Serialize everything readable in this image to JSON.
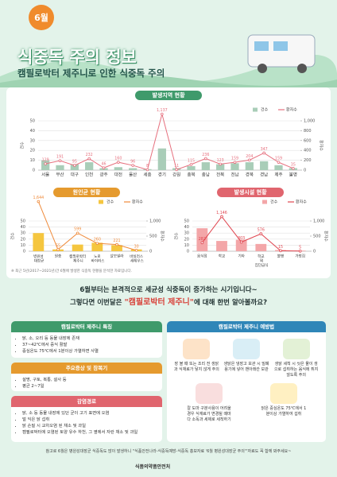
{
  "header": {
    "badge": "6월",
    "title": "식중독 주의 정보",
    "subtitle": "캠필로박터 제주니로 인한 식중독 주의"
  },
  "chart_data": [
    {
      "type": "combo",
      "title": "발생지역 현황",
      "categories": [
        "서울",
        "부산",
        "대구",
        "인천",
        "광주",
        "대전",
        "울산",
        "세종",
        "경기",
        "강원",
        "충북",
        "충남",
        "전북",
        "전남",
        "경북",
        "경남",
        "제주",
        "불명"
      ],
      "series": [
        {
          "name": "건수",
          "type": "bar",
          "color": "#a9cdb8",
          "values": [
            10,
            5,
            6,
            8,
            2,
            3,
            2,
            1,
            22,
            2,
            4,
            8,
            6,
            7,
            8,
            9,
            5,
            2
          ]
        },
        {
          "name": "환자수",
          "type": "line",
          "axis": "y2",
          "color": "#e6707e",
          "values": [
            129,
            191,
            95,
            232,
            46,
            160,
            96,
            8,
            1137,
            11,
            115,
            236,
            123,
            159,
            204,
            347,
            159,
            35
          ],
          "value_labels": [
            "129",
            "191",
            "95",
            "232",
            "46",
            "160",
            "96",
            "8",
            "1,137",
            "11",
            "115",
            "236",
            "123",
            "159",
            "204",
            "347",
            "159",
            "35"
          ]
        }
      ],
      "ylabel": "건수",
      "y2label": "환자수",
      "ylim": [
        0,
        50
      ],
      "yticks": [
        0,
        10,
        20,
        30,
        40,
        50
      ],
      "y2lim": [
        0,
        1000
      ],
      "y2ticks": [
        0,
        200,
        400,
        600,
        800,
        {
          "value": 1000,
          "label": "1,000"
        }
      ],
      "grid": true
    },
    {
      "type": "combo",
      "title": "원인균 현황",
      "categories": [
        "병원성 대장균",
        "원충",
        "캠필로박터 제주니",
        "노로 바이러스",
        "살모넬라",
        "바실러스 세레우스"
      ],
      "series": [
        {
          "name": "건수",
          "type": "bar",
          "color": "#f5c63f",
          "values": [
            30,
            3,
            11,
            14,
            10,
            3
          ]
        },
        {
          "name": "환자수",
          "type": "line",
          "axis": "y2",
          "color": "#ef8a3a",
          "values": [
            1644,
            55,
            599,
            260,
            221,
            30
          ],
          "value_labels": [
            "1,644",
            "55",
            "599",
            "260",
            "221",
            "30"
          ]
        }
      ],
      "ylabel": "건수",
      "y2label": "환자수",
      "ylim": [
        0,
        50
      ],
      "yticks": [
        0,
        10,
        20,
        30,
        40,
        50
      ],
      "y2lim": [
        0,
        1000
      ],
      "y2ticks": [
        0,
        500,
        {
          "value": 1000,
          "label": "1,000"
        }
      ],
      "grid": true
    },
    {
      "type": "combo",
      "title": "발생시설 현황",
      "categories": [
        "음식점",
        "학교",
        "기타",
        "학교 외 집단급식",
        "불명",
        "가정집"
      ],
      "series": [
        {
          "name": "건수",
          "type": "bar",
          "color": "#f3a6a8",
          "values": [
            38,
            17,
            19,
            12,
            2,
            1
          ]
        },
        {
          "name": "환자수",
          "type": "line",
          "axis": "y2",
          "color": "#e0454f",
          "values": [
            282,
            1146,
            303,
            576,
            15,
            5
          ],
          "value_labels": [
            "282",
            "1,146",
            "303",
            "576",
            "15",
            "5"
          ]
        }
      ],
      "ylabel": "건수",
      "y2label": "환자수",
      "ylim": [
        0,
        50
      ],
      "yticks": [
        0,
        10,
        20,
        30,
        40,
        50
      ],
      "y2lim": [
        0,
        1000
      ],
      "y2ticks": [
        0,
        500,
        {
          "value": 1000,
          "label": "1,000"
        }
      ],
      "grid": true
    }
  ],
  "footnote": "※ 최근 5년(2017~2021년)간 6월에 발생한 식중독 현황을 분석한 자료입니다.",
  "intro": {
    "line1": "6월부터는 본격적으로 세균성 식중독이 증가하는 시기입니다~",
    "line2_pre": "그렇다면 이번달은 ",
    "line2_em": "\"캠필로박터 제주니\"",
    "line2_post": "에 대해 한번 알아볼까요?"
  },
  "features": {
    "title": "캠필로박터 제주니 특징",
    "items": [
      "닭, 소, 오리 등 동물 내장에 존재",
      "37~42℃에서 증식 활발",
      "중심온도 75℃에서 1분이상 가열하면 사멸"
    ]
  },
  "symptoms": {
    "title": "주요증상 및 잠복기",
    "items": [
      "설명, 구토, 복통, 설사 등",
      "평균 2~7일"
    ]
  },
  "routes": {
    "title": "감염경로",
    "items": [
      "닭, 소 등 동물 내장에 있던 균이 고기 표면에 오염",
      "덜 익은 닭 섭취",
      "닭 손질 시 교차오염 된 채소 및 과일",
      "캠필로박터에 오염된 토양 유수 하천, 그 옆에서 자란 채소 및 과일"
    ]
  },
  "prevention": {
    "title": "캠필로박터 제주니 예방법",
    "items": [
      "장 볼 때 또는 조리 전 생닭과 식재료가 닿지 않게 주의",
      "생닭은 냉장고 보관 시 밀폐용기에 넣어 맨아래칸 보관",
      "생닭 세척 시 씻은 물이 생으로 섭취하는 음식에 튀지 않도록 주의",
      "칼 도마 구분사용이 어려울 경우 식재료가 변경될 때마다 소독과 세제로 세척하기",
      "닭은 중심온도 75℃에서 1분이상 가열하여 섭취"
    ]
  },
  "footer": {
    "note": "참고로 6월은 병원성대장균 식중독도 많이 발생하니 \"식품안전나라-식중독예방-식중독 홍보자료 '6월 병원성대장균 주의'\"자료도 꼭 함께 봐주세요~",
    "org": "식품의약품안전처"
  }
}
